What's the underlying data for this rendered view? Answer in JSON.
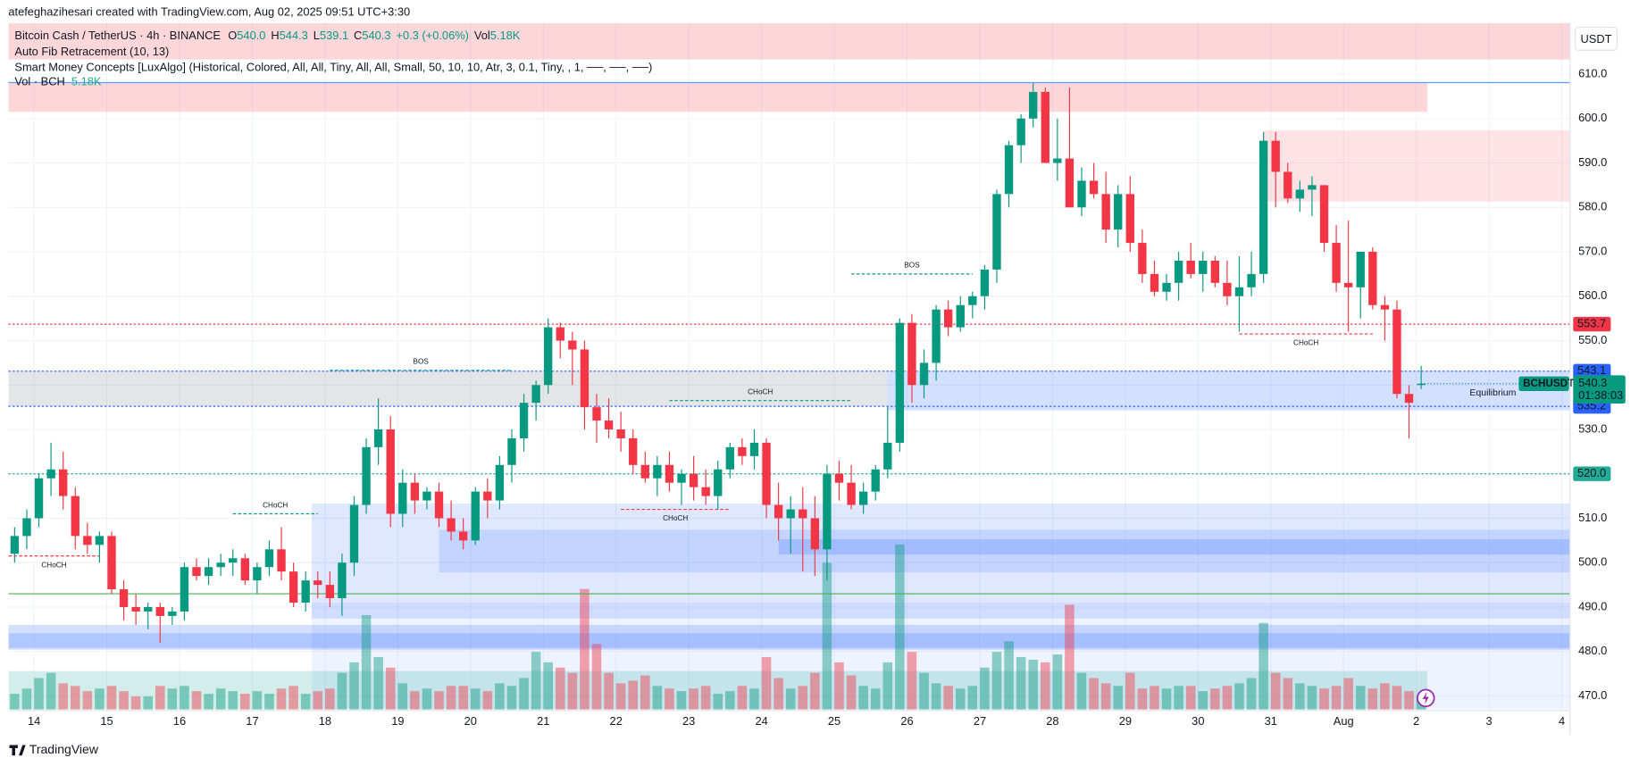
{
  "header": {
    "credit": "atefeghazihesari created with TradingView.com, Aug 02, 2025 09:51 UTC+3:30"
  },
  "legend": {
    "symbol": "Bitcoin Cash / TetherUS · 4h · BINANCE",
    "ohlc": [
      {
        "key": "O",
        "value": "540.0"
      },
      {
        "key": "H",
        "value": "544.3"
      },
      {
        "key": "L",
        "value": "539.1"
      },
      {
        "key": "C",
        "value": "540.3"
      }
    ],
    "change": "+0.3 (+0.06%)",
    "vol_key": "Vol",
    "vol": "5.18K",
    "indicators": [
      "Auto Fib Retracement (10, 13)",
      "Smart Money Concepts [LuxAlgo] (Historical, Colored, All, All, Tiny, All, All, Small, 50, 10, 10, Atr, 3, 0.1, Tiny, , 1, ──, ──, ──)"
    ],
    "volume_name": "Vol · BCH",
    "volume_value": "5.18K"
  },
  "footer": {
    "brand": "TradingView"
  },
  "chart_data": {
    "type": "candlestick",
    "currency": "USDT",
    "up_color": "#089981",
    "down_color": "#f23645",
    "grid": true,
    "categories": [
      null,
      null,
      "14",
      null,
      null,
      null,
      null,
      null,
      "15",
      null,
      null,
      null,
      null,
      null,
      "16",
      null,
      null,
      null,
      null,
      null,
      "17",
      null,
      null,
      null,
      null,
      null,
      "18",
      null,
      null,
      null,
      null,
      null,
      "19",
      null,
      null,
      null,
      null,
      null,
      "20",
      null,
      null,
      null,
      null,
      null,
      "21",
      null,
      null,
      null,
      null,
      null,
      "22",
      null,
      null,
      null,
      null,
      null,
      "23",
      null,
      null,
      null,
      null,
      null,
      "24",
      null,
      null,
      null,
      null,
      null,
      "25",
      null,
      null,
      null,
      null,
      null,
      "26",
      null,
      null,
      null,
      null,
      null,
      "27",
      null,
      null,
      null,
      null,
      null,
      "28",
      null,
      null,
      null,
      null,
      null,
      "29",
      null,
      null,
      null,
      null,
      null,
      "30",
      null,
      null,
      null,
      null,
      null,
      "31",
      null,
      null,
      null,
      null,
      null,
      "Aug",
      null,
      null,
      null,
      null,
      null,
      "2",
      null,
      null,
      null,
      null,
      null,
      "3",
      null,
      null,
      null,
      null,
      null,
      "4"
    ],
    "open": [
      502,
      506,
      510,
      519,
      521,
      515,
      506,
      504,
      506,
      494,
      490,
      489,
      490,
      488,
      489,
      499,
      497,
      499,
      500,
      501,
      496,
      499,
      503,
      498,
      491,
      496,
      495,
      492,
      500,
      513,
      526,
      530,
      511,
      518,
      514,
      516,
      510,
      507,
      505,
      516,
      514,
      522,
      528,
      536,
      540,
      553,
      550,
      548,
      535,
      532,
      530,
      528,
      522,
      519,
      522,
      518,
      520,
      517,
      515,
      521,
      526,
      524,
      527,
      513,
      510,
      512,
      510,
      503,
      520,
      518,
      513,
      516,
      521,
      527,
      554,
      540,
      545,
      557,
      553,
      558,
      560,
      566,
      583,
      594,
      600,
      606,
      590,
      591,
      580,
      586,
      583,
      575,
      583,
      572,
      565,
      561,
      563,
      568,
      565,
      568,
      563,
      560,
      562,
      565,
      595,
      588,
      582,
      584,
      585,
      572,
      563,
      562,
      570,
      558,
      557,
      538,
      540,
      null,
      null,
      null,
      null,
      null,
      null,
      null,
      null,
      null,
      null,
      null,
      null
    ],
    "high": [
      508,
      512,
      520,
      527,
      525,
      517,
      509,
      507,
      507,
      496,
      493,
      491,
      491,
      490,
      500,
      501,
      501,
      502,
      503,
      502,
      500,
      505,
      508,
      500,
      498,
      498,
      498,
      502,
      515,
      528,
      537,
      533,
      521,
      520,
      517,
      518,
      514,
      510,
      517,
      519,
      524,
      530,
      538,
      541,
      555,
      554,
      552,
      550,
      538,
      537,
      534,
      530,
      525,
      524,
      525,
      521,
      524,
      521,
      523,
      527,
      528,
      530,
      528,
      518,
      515,
      517,
      515,
      522,
      523,
      522,
      518,
      522,
      535,
      555,
      556,
      548,
      558,
      559,
      560,
      561,
      567,
      584,
      595,
      601,
      608,
      607,
      600,
      607,
      589,
      590,
      588,
      585,
      587,
      575,
      568,
      565,
      570,
      572,
      570,
      569,
      568,
      569,
      570,
      597,
      597,
      590,
      586,
      587,
      585,
      576,
      577,
      570,
      571,
      560,
      559,
      540,
      544.3,
      null,
      null,
      null,
      null,
      null,
      null,
      null,
      null,
      null,
      null,
      null,
      null
    ],
    "low": [
      500,
      503,
      508,
      515,
      512,
      503,
      502,
      500,
      493,
      487,
      486,
      485,
      482,
      486,
      487,
      496,
      495,
      497,
      497,
      495,
      493,
      497,
      496,
      490,
      489,
      492,
      490,
      488,
      497,
      511,
      522,
      508,
      508,
      511,
      512,
      508,
      505,
      503,
      504,
      510,
      512,
      518,
      525,
      532,
      538,
      546,
      540,
      530,
      527,
      528,
      525,
      520,
      518,
      515,
      516,
      513,
      514,
      513,
      512,
      519,
      522,
      521,
      510,
      505,
      502,
      498,
      497,
      496,
      514,
      512,
      511,
      514,
      519,
      525,
      536,
      537,
      541,
      551,
      552,
      555,
      557,
      563,
      580,
      590,
      598,
      590,
      586,
      580,
      578,
      582,
      572,
      571,
      570,
      563,
      560,
      559,
      559,
      564,
      561,
      562,
      558,
      552,
      560,
      563,
      580,
      581,
      579,
      578,
      570,
      561,
      552,
      555,
      557,
      550,
      537,
      528,
      539.1,
      null,
      null,
      null,
      null,
      null,
      null,
      null,
      null,
      null,
      null,
      null,
      null
    ],
    "close": [
      506,
      510,
      519,
      521,
      515,
      506,
      504,
      506,
      494,
      490,
      489,
      490,
      488,
      489,
      499,
      497,
      499,
      500,
      501,
      496,
      499,
      503,
      498,
      491,
      496,
      495,
      492,
      500,
      513,
      526,
      530,
      511,
      518,
      514,
      516,
      510,
      507,
      505,
      516,
      514,
      522,
      528,
      536,
      540,
      553,
      550,
      548,
      535,
      532,
      530,
      528,
      522,
      519,
      522,
      518,
      520,
      517,
      515,
      521,
      526,
      524,
      527,
      513,
      510,
      512,
      510,
      503,
      520,
      518,
      513,
      516,
      521,
      527,
      554,
      540,
      545,
      557,
      553,
      558,
      560,
      566,
      583,
      594,
      600,
      606,
      590,
      591,
      580,
      586,
      583,
      575,
      583,
      572,
      565,
      561,
      563,
      568,
      565,
      568,
      563,
      560,
      562,
      565,
      595,
      588,
      582,
      584,
      585,
      572,
      563,
      562,
      570,
      558,
      557,
      538,
      536,
      540.3,
      null,
      null,
      null,
      null,
      null,
      null,
      null,
      null,
      null,
      null,
      null,
      null
    ],
    "volume": [
      6000,
      8000,
      12000,
      14000,
      10000,
      9000,
      7000,
      8000,
      9000,
      7000,
      5000,
      5000,
      9000,
      8000,
      9000,
      7000,
      6000,
      8000,
      7000,
      6000,
      7000,
      6000,
      8000,
      9000,
      6000,
      7000,
      8000,
      14000,
      18000,
      36000,
      20000,
      16000,
      10000,
      7000,
      8000,
      7000,
      9000,
      9000,
      8000,
      7000,
      10000,
      9000,
      12000,
      22000,
      18000,
      16000,
      14000,
      46000,
      25000,
      14000,
      10000,
      11000,
      13000,
      9000,
      8000,
      7000,
      8000,
      9000,
      6000,
      7000,
      9000,
      8000,
      20000,
      12000,
      8000,
      9000,
      14000,
      56000,
      18000,
      13000,
      9000,
      8000,
      18000,
      63000,
      22000,
      14000,
      10000,
      9000,
      8000,
      9000,
      16000,
      22000,
      26000,
      20000,
      19000,
      18000,
      21000,
      40000,
      14000,
      12000,
      10000,
      9000,
      14000,
      8000,
      9000,
      8000,
      9000,
      9000,
      7000,
      8000,
      9000,
      10000,
      12000,
      33000,
      14000,
      12000,
      10000,
      9000,
      8000,
      9000,
      12000,
      9000,
      8000,
      10000,
      9000,
      7000,
      5180,
      null,
      null,
      null,
      null,
      null,
      null,
      null,
      null,
      null,
      null,
      null,
      null
    ],
    "ylim": [
      466.7,
      621.5
    ],
    "yticks": [
      {
        "value": 470,
        "label": "470.0"
      },
      {
        "value": 480,
        "label": "480.0"
      },
      {
        "value": 490,
        "label": "490.0"
      },
      {
        "value": 500,
        "label": "500.0"
      },
      {
        "value": 510,
        "label": "510.0"
      },
      {
        "value": 520,
        "label": "520.0"
      },
      {
        "value": 530,
        "label": "530.0"
      },
      {
        "value": 540,
        "label": "540.0"
      },
      {
        "value": 550,
        "label": "550.0"
      },
      {
        "value": 560,
        "label": "560.0"
      },
      {
        "value": 570,
        "label": "570.0"
      },
      {
        "value": 580,
        "label": "580.0"
      },
      {
        "value": 590,
        "label": "590.0"
      },
      {
        "value": 600,
        "label": "600.0"
      },
      {
        "value": 610,
        "label": "610.0"
      }
    ],
    "zones": [
      {
        "top": 621.5,
        "bottom": 613.3,
        "from": -0.5,
        "to": 128.5,
        "color": "rgba(242,54,69,0.2)"
      },
      {
        "top": 608.1,
        "bottom": 601.5,
        "from": -0.5,
        "to": 116.5,
        "color": "rgba(242,54,69,0.2)"
      },
      {
        "top": 597.3,
        "bottom": 581.3,
        "from": 103,
        "to": 128.5,
        "color": "rgba(242,54,69,0.14)"
      },
      {
        "top": 543.2,
        "bottom": 535.2,
        "from": -0.5,
        "to": 72,
        "color": "rgba(120,123,134,0.2)"
      },
      {
        "top": 543.2,
        "bottom": 534.3,
        "from": 72,
        "to": 128.5,
        "color": "rgba(41,98,255,0.2)"
      },
      {
        "top": 513.3,
        "bottom": 487.4,
        "from": 24.5,
        "to": 128.5,
        "color": "rgba(41,98,255,0.15)"
      },
      {
        "top": 507.4,
        "bottom": 497.8,
        "from": 35,
        "to": 128.5,
        "color": "rgba(41,98,255,0.15)"
      },
      {
        "top": 505.3,
        "bottom": 501.8,
        "from": 63,
        "to": 128.5,
        "color": "rgba(41,98,255,0.2)"
      },
      {
        "top": 486,
        "bottom": 480.4,
        "from": -0.5,
        "to": 128.5,
        "color": "rgba(41,98,255,0.2)"
      },
      {
        "top": 484.1,
        "bottom": 480.8,
        "from": -0.5,
        "to": 128.5,
        "color": "rgba(41,98,255,0.2)"
      },
      {
        "top": 475.6,
        "bottom": 467,
        "from": -0.5,
        "to": 116.5,
        "color": "rgba(34,171,148,0.2)"
      },
      {
        "top": 491,
        "bottom": 467,
        "from": 24.5,
        "to": 128.5,
        "color": "rgba(41,98,255,0.08)"
      }
    ],
    "lines": [
      {
        "value": 608.1,
        "color": "#5b9cf6",
        "dash": false
      },
      {
        "value": 493,
        "color": "#4caf50",
        "dash": false
      }
    ],
    "levels": [
      {
        "value": 553.7,
        "color": "#f23645"
      },
      {
        "value": 543.1,
        "color": "#2962ff"
      },
      {
        "value": 535.2,
        "color": "#2962ff"
      },
      {
        "value": 520,
        "label": "520.0",
        "color": "#22ab94"
      }
    ],
    "last_price": {
      "symbol": "BCHUSDT",
      "countdown": "01:38:03"
    },
    "annotations": [
      {
        "text": "BOS",
        "price": 543.3,
        "from": 26,
        "to": 41,
        "color": "#089981",
        "placement": "above"
      },
      {
        "text": "BOS",
        "price": 565,
        "from": 69,
        "to": 79,
        "color": "#089981",
        "placement": "above"
      },
      {
        "text": "CHoCH",
        "price": 536.5,
        "from": 54,
        "to": 69,
        "color": "#089981",
        "placement": "above"
      },
      {
        "text": "CHoCH",
        "price": 511,
        "from": 18,
        "to": 25,
        "color": "#089981",
        "placement": "above"
      },
      {
        "text": "CHoCH",
        "price": 501.5,
        "from": -0.5,
        "to": 7,
        "color": "#f23645",
        "placement": "below"
      },
      {
        "text": "CHoCH",
        "price": 512,
        "from": 50,
        "to": 59,
        "color": "#f23645",
        "placement": "below"
      },
      {
        "text": "CHoCH",
        "price": 551.5,
        "from": 101,
        "to": 112,
        "color": "#f23645",
        "placement": "below"
      }
    ],
    "labels": [
      {
        "text": "Equilibrium",
        "price": 538.2,
        "at": 120,
        "color": "#b2b5be"
      }
    ]
  }
}
